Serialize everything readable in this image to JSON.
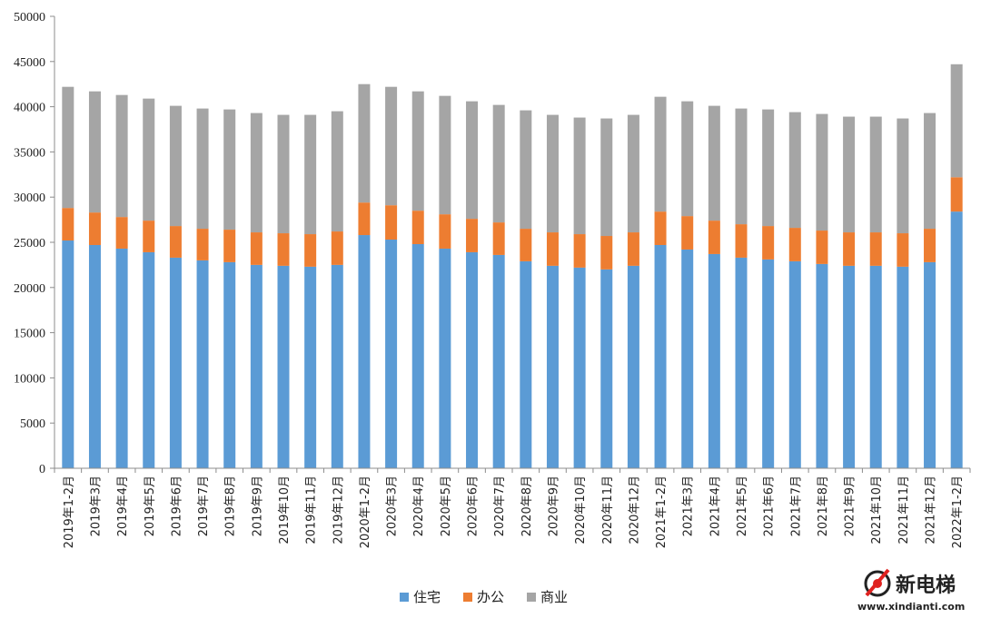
{
  "chart_data": {
    "type": "bar",
    "stacked": true,
    "title": "",
    "xlabel": "",
    "ylabel": "",
    "ylim": [
      0,
      50000
    ],
    "yticks": [
      0,
      5000,
      10000,
      15000,
      20000,
      25000,
      30000,
      35000,
      40000,
      45000,
      50000
    ],
    "grid": false,
    "legend_position": "bottom",
    "categories": [
      "2019年1-2月",
      "2019年3月",
      "2019年4月",
      "2019年5月",
      "2019年6月",
      "2019年7月",
      "2019年8月",
      "2019年9月",
      "2019年10月",
      "2019年11月",
      "2019年12月",
      "2020年1-2月",
      "2020年3月",
      "2020年4月",
      "2020年5月",
      "2020年6月",
      "2020年7月",
      "2020年8月",
      "2020年9月",
      "2020年10月",
      "2020年11月",
      "2020年12月",
      "2021年1-2月",
      "2021年3月",
      "2021年4月",
      "2021年5月",
      "2021年6月",
      "2021年7月",
      "2021年8月",
      "2021年9月",
      "2021年10月",
      "2021年11月",
      "2021年12月",
      "2022年1-2月"
    ],
    "series": [
      {
        "name": "住宅",
        "color": "#5b9bd5",
        "values": [
          25200,
          24700,
          24300,
          23900,
          23300,
          23000,
          22800,
          22500,
          22400,
          22300,
          22500,
          25800,
          25300,
          24800,
          24300,
          23900,
          23600,
          22900,
          22400,
          22200,
          22000,
          22400,
          24700,
          24200,
          23700,
          23300,
          23100,
          22900,
          22600,
          22400,
          22400,
          22300,
          22800,
          28400
        ]
      },
      {
        "name": "办公",
        "color": "#ed7d31",
        "values": [
          3600,
          3600,
          3500,
          3500,
          3500,
          3500,
          3600,
          3600,
          3600,
          3600,
          3700,
          3600,
          3800,
          3700,
          3800,
          3700,
          3600,
          3600,
          3700,
          3700,
          3700,
          3700,
          3700,
          3700,
          3700,
          3700,
          3700,
          3700,
          3700,
          3700,
          3700,
          3700,
          3700,
          3800
        ]
      },
      {
        "name": "商业",
        "color": "#a5a5a5",
        "values": [
          13400,
          13400,
          13500,
          13500,
          13300,
          13300,
          13300,
          13200,
          13100,
          13200,
          13300,
          13100,
          13100,
          13200,
          13100,
          13000,
          13000,
          13100,
          13000,
          12900,
          13000,
          13000,
          12700,
          12700,
          12700,
          12800,
          12900,
          12800,
          12900,
          12800,
          12800,
          12700,
          12800,
          12500
        ]
      }
    ]
  },
  "watermark": {
    "name": "新电梯",
    "url": "www.xindianti.com"
  }
}
